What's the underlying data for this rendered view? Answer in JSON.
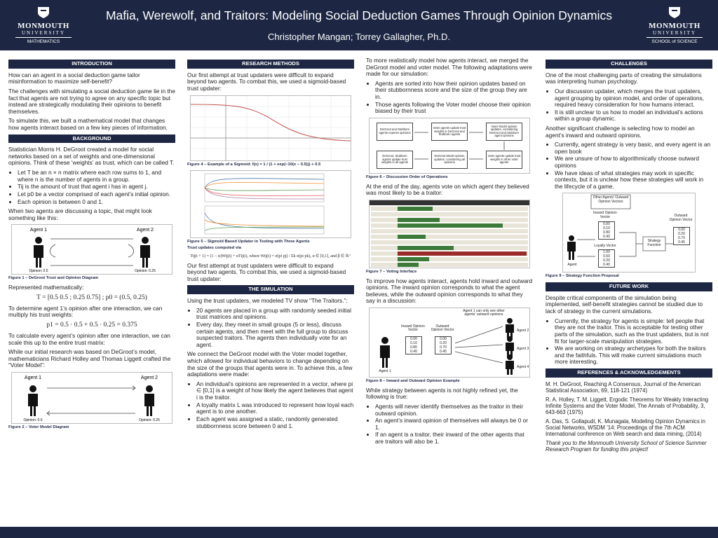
{
  "header": {
    "title": "Mafia, Werewolf, and Traitors: Modeling Social Deduction Games Through Opinion Dynamics",
    "authors": "Christopher Mangan; Torrey Gallagher, Ph.D.",
    "logo_left": {
      "line1": "MONMOUTH",
      "line2": "UNIVERSITY",
      "dept": "MATHEMATICS"
    },
    "logo_right": {
      "line1": "MONMOUTH",
      "line2": "UNIVERSITY",
      "dept": "SCHOOL of SCIENCE"
    }
  },
  "introduction": {
    "heading": "INTRODUCTION",
    "paragraphs": [
      "How can an agent in a social deduction game tailor misinformation to maximize self-benefit?",
      "The challenges with simulating a social deduction game lie in the fact that agents are not trying to agree on any specific topic but instead are strategically modulating their opinions to benefit themselves.",
      "To simulate this, we built a mathematical model that changes how agents interact based on a few key pieces of information."
    ]
  },
  "background": {
    "heading": "BACKGROUND",
    "intro": "Statistician Morris H. DeGroot created a model for social networks based on a set of weights and one-dimensional opinions. Think of these ‘weights’ as trust, which can be called T.",
    "bullets": [
      "Let T be an n × n matrix where each row sums to 1, and where n is the number of agents in a group.",
      "Tij is the amount of trust that agent i has in agent j.",
      "Let p0 be a vector comprised of each agent’s initial opinion.",
      "Each opinion is between 0 and 1."
    ],
    "text_discuss": "When two agents are discussing a topic, that might look something like this:",
    "figure_1": {
      "agent_1": "Agent 1",
      "agent_2": "Agent 2",
      "opinion_1": "Opinion: 0.5",
      "opinion_2": "Opinion: 0.25",
      "caption": "Figure 1 – DeGroot Trust and Opinion Diagram"
    },
    "text_math": "Represented mathematically:",
    "formula_1": "T = [0.5 0.5 ; 0.25 0.75] ;  p0 = (0.5, 0.25)",
    "text_agent": "To determine agent 1’s opinion after one interaction, we can multiply his trust weights:",
    "formula_2": "p1 = 0.5 · 0.5 + 0.5 · 0.25 = 0.375",
    "text_scale": "To calculate every agent’s opinion after one interaction, we can scale this up to the entire trust matrix:",
    "text_voter": "While our initial research was based on DeGroot’s model, mathematicians Richard Holley and Thomas Liggett crafted the “Voter Model”:",
    "figure_2": {
      "agent_1": "Agent 1",
      "agent_2": "Agent 2",
      "opinion_1": "Opinion: 0.5",
      "opinion_2": "Opinion: 0.25",
      "caption": "Figure 2 – Voter Model Diagram"
    }
  },
  "research_methods": {
    "heading": "RESEARCH METHODS",
    "intro": "Our first attempt at trust updaters were difficult to expand beyond two agents. To combat this, we used a sigmoid-based trust updater:",
    "figure_4_caption": "Figure 4 – Example of a Sigmoid: f(x) = 1 / (1 + exp(−10(x − 0.5))) + 0.5",
    "figure_5_caption": "Figure 5 – Sigmoid Based Updater in Testing with Three Agents",
    "formula_label": "Trust updates computed via",
    "formula": "Tij(t + 1) = (1 − α)Wij(t) + αTij(t), where Wij(t) = σ(pi pj) / Σk σ(pi pk), α ∈ [0,1], and β ∈ ℝ⁺",
    "outro": "Our first attempt at trust updaters were difficult to expand beyond two agents. To combat this, we used a sigmoid-based trust updater:"
  },
  "simulation": {
    "heading": "THE SIMULATION",
    "intro": "Using the trust updaters, we modeled TV show “The Traitors.”:",
    "bullets_1": [
      "20 agents are placed in a group with randomly seeded initial trust matrices and opinions.",
      "Every day, they meet in small groups (5 or less), discuss certain agents, and then meet with the full group to discuss suspected traitors. The agents then individually vote for an agent."
    ],
    "text_connect": "We connect the DeGroot model with the Voter model together, which allowed for individual behaviors to change depending on the size of the groups that agents were in. To achieve this, a few adaptations were made:",
    "bullets_2": [
      "An individual’s opinions are represented in a vector, where pi ∈ [0,1] is a weight of how likely the agent believes that agent i is the traitor.",
      "A loyalty matrix L was introduced to represent how loyal each agent is to one another.",
      "Each agent was assigned a static, randomly generated stubbornness score between 0 and 1."
    ]
  },
  "merge": {
    "intro": "To more realistically model how agents interact, we merged the DeGroot model and voter model. The following adaptations were made for our simulation:",
    "bullets": [
      "Agents are sorted into how their opinion updates based on their stubbornness score and the size of the group they are in.",
      "Those agents following the Voter model choose their opinion biased by their trust"
    ],
    "figure_6": {
      "boxes": [
        "DeGroot and Stubborn agents express opinions",
        "Voter agents update trust weights in DeGroot and Stubborn agents",
        "Voter Model opinion updates, considering DeGroot and Stubborn agent opinions",
        "DeGroot, Stubborn agents update trust weights in all agents",
        "DeGroot Model opinion updates, considering all opinions",
        "Voter agents update trust weights in other voter agents"
      ],
      "caption": "Figure 6 – Discussion Order of Operations"
    },
    "text_vote": "At the end of the day, agents vote on which agent they believed was most likely to be a traitor:",
    "figure_7_caption": "Figure 7 – Voting Interface",
    "text_opinions": "To improve how agents interact, agents hold inward and outward opinions. The inward opinion corresponds to what the agent believes, while the outward opinion corresponds to what they say in a discussion:",
    "figure_8": {
      "note": "Agent 1 can only see other agents’ outward opinions",
      "inward_label": "Inward Opinion Vector",
      "outward_label": "Outward Opinion Vector",
      "inward": [
        "0.00",
        "0.10",
        "0.80",
        "0.40"
      ],
      "outward": [
        "0.00",
        "0.20",
        "0.70",
        "0.45"
      ],
      "agents": [
        "Agent 1",
        "Agent 2",
        "Agent 3",
        "Agent 4"
      ],
      "caption": "Figure 8 – Inward and Outward Opinion Example"
    },
    "text_strategy": "While strategy between agents is not highly refined yet, the following is true:",
    "bullets_2": [
      "Agents will never identify themselves as the traitor in their outward opinion.",
      "An agent’s inward opinion of themselves will always be 0 or 1.",
      "If an agent is a traitor, their inward of the other agents that are traitors will also be 1."
    ]
  },
  "challenges": {
    "heading": "CHALLENGES",
    "intro": "One of the most challenging parts of creating the simulations was interpreting human psychology.",
    "bullets_1": [
      "Our discussion updater, which merges the trust updaters, agent grouping by opinion model, and order of operations, required heavy consideration for how humans interact.",
      "It is still unclear to us how to model an individual’s actions within a group dynamic."
    ],
    "text_2": "Another significant challenge is selecting how to model an agent’s inward and outward opinions.",
    "bullets_2": [
      "Currently, agent strategy is very basic, and every agent is an open book",
      "We are unsure of how to algorithmically choose outward opinions",
      "We have ideas of what strategies may work in specific contexts, but it is unclear how these strategies will work in the lifecycle of a game."
    ],
    "figure_9": {
      "others": "Other Agents’ Outward Opinion Vectors",
      "inward_label": "Inward Opinion Vector",
      "inward": [
        "0.00",
        "0.10",
        "0.80",
        "0.40"
      ],
      "loyalty_label": "Loyalty Vector",
      "loyalty": [
        "1.00",
        "0.50",
        "0.20",
        "0.40"
      ],
      "function": "Strategy Function",
      "outward_label": "Outward Opinion Vector",
      "outward": [
        "0.00",
        "0.20",
        "0.70",
        "0.45"
      ],
      "agent": "Agent",
      "caption": "Figure 9 – Strategy Function Proposal"
    }
  },
  "future_work": {
    "heading": "FUTURE WORK",
    "intro": "Despite critical components of the simulation being implemented, self-benefit strategies cannot be studied due to lack of strategy in the current simulations.",
    "bullets": [
      "Currently, the strategy for agents is simple: tell people that they are not the traitor. This is acceptable for testing other parts of the simulation, such as the trust updaters, but is not fit for larger-scale manipulation strategies.",
      "We are working on strategy archetypes for both the traitors and the faithfuls. This will make current simulations much more interesting."
    ]
  },
  "references": {
    "heading": "REFERENCES & ACKNOWLEDGEMENTS",
    "items": [
      "M. H. DeGroot, Reaching A Consensus, Journal of the American Statistical Association, 69, 118-121 (1974)",
      "R. A. Holley, T. M. Liggett, Ergodic Theorems for Weakly Interacting Infinite Systems and the Voter Model, The Annals of Probability, 3, 643-663 (1975)",
      "A. Das, S. Gollapudi, K. Munagala, Modeling Opinion Dynamics in Social Networks, WSDM ’14: Proceedings of the 7th ACM International conference on Web search and data mining, (2014)"
    ],
    "thanks": "Thank you to the Monmouth University School of Science Summer Research Program for funding this project!"
  }
}
